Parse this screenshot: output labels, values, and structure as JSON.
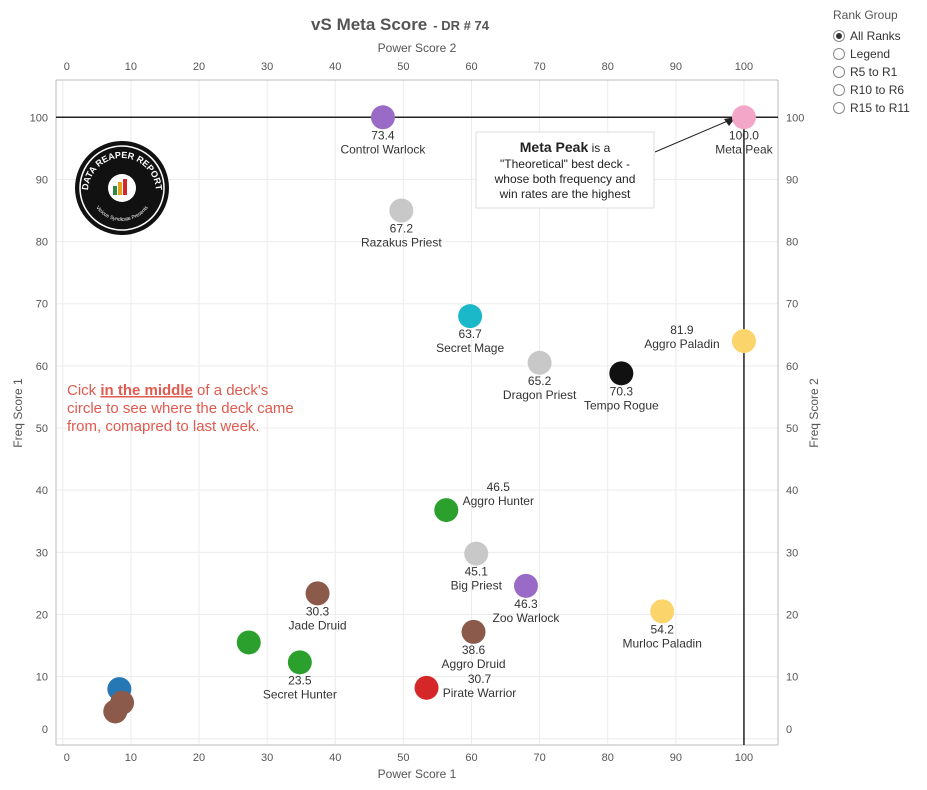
{
  "chart_data": {
    "type": "scatter",
    "title": "vS Meta Score",
    "subtitle": "DR # 74",
    "xlabel_bottom": "Power Score 1",
    "xlabel_top": "Power Score 2",
    "ylabel_left": "Freq Score 1",
    "ylabel_right": "Freq Score 2",
    "xlim": [
      -1,
      105
    ],
    "ylim": [
      -1,
      106
    ],
    "x_ticks": [
      0,
      10,
      20,
      30,
      40,
      50,
      60,
      70,
      80,
      90,
      100
    ],
    "y_ticks": [
      0,
      10,
      20,
      30,
      40,
      50,
      60,
      70,
      80,
      90,
      100
    ],
    "grid": true,
    "reference_lines": {
      "x": 100,
      "y": 100
    },
    "points": [
      {
        "name": "Meta Peak",
        "score": "100.0",
        "x": 100,
        "y": 100,
        "color": "#f4a6c8"
      },
      {
        "name": "Control Warlock",
        "score": "73.4",
        "x": 47,
        "y": 100,
        "color": "#9a6bc6"
      },
      {
        "name": "Razakus Priest",
        "score": "67.2",
        "x": 49.7,
        "y": 85,
        "color": "#c8c8c8"
      },
      {
        "name": "Secret Mage",
        "score": "63.7",
        "x": 59.8,
        "y": 68,
        "color": "#1ab8c8"
      },
      {
        "name": "Dragon Priest",
        "score": "65.2",
        "x": 70,
        "y": 60.5,
        "color": "#c8c8c8"
      },
      {
        "name": "Tempo Rogue",
        "score": "70.3",
        "x": 82,
        "y": 58.8,
        "color": "#111111"
      },
      {
        "name": "Aggro Paladin",
        "score": "81.9",
        "x": 100,
        "y": 64,
        "color": "#fbd46b"
      },
      {
        "name": "Aggro Hunter",
        "score": "46.5",
        "x": 56.3,
        "y": 36.8,
        "color": "#2ca02c"
      },
      {
        "name": "Big Priest",
        "score": "45.1",
        "x": 60.7,
        "y": 29.8,
        "color": "#c8c8c8"
      },
      {
        "name": "Zoo Warlock",
        "score": "46.3",
        "x": 68,
        "y": 24.6,
        "color": "#9a6bc6"
      },
      {
        "name": "Murloc Paladin",
        "score": "54.2",
        "x": 88,
        "y": 20.5,
        "color": "#fbd46b"
      },
      {
        "name": "Jade Druid",
        "score": "30.3",
        "x": 37.4,
        "y": 23.4,
        "color": "#8c5a4a"
      },
      {
        "name": "Aggro Druid",
        "score": "38.6",
        "x": 60.3,
        "y": 17.2,
        "color": "#8c5a4a"
      },
      {
        "name": "Secret Hunter",
        "score": "23.5",
        "x": 34.8,
        "y": 12.3,
        "color": "#2ca02c"
      },
      {
        "name": "Pirate Warrior",
        "score": "30.7",
        "x": 53.4,
        "y": 8.2,
        "color": "#d62728"
      },
      {
        "name": "",
        "score": "",
        "x": 27.3,
        "y": 15.5,
        "color": "#2ca02c"
      },
      {
        "name": "",
        "score": "",
        "x": 8.3,
        "y": 8,
        "color": "#2678b4"
      },
      {
        "name": "",
        "score": "",
        "x": 8.7,
        "y": 5.8,
        "color": "#8c5a4a"
      },
      {
        "name": "",
        "score": "",
        "x": 7.7,
        "y": 4.4,
        "color": "#8c5a4a"
      }
    ],
    "callout": {
      "bold": "Meta Peak",
      "lines": [
        " is a",
        "\"Theoretical\" best deck -",
        "whose both frequency and",
        "win rates are the highest"
      ]
    },
    "note": {
      "pre": "Cick ",
      "bold": "in the middle",
      "post": " of a deck's",
      "line2": "circle to see where the deck came",
      "line3": "from, comapred to last week."
    }
  },
  "logo": {
    "text": "DATA REAPER REPORT",
    "subtext": "Vicious Syndicate Presents"
  },
  "legend": {
    "title": "Rank Group",
    "options": [
      "All Ranks",
      "Legend",
      "R5 to R1",
      "R10 to R6",
      "R15 to R11"
    ],
    "selected": "All Ranks"
  }
}
